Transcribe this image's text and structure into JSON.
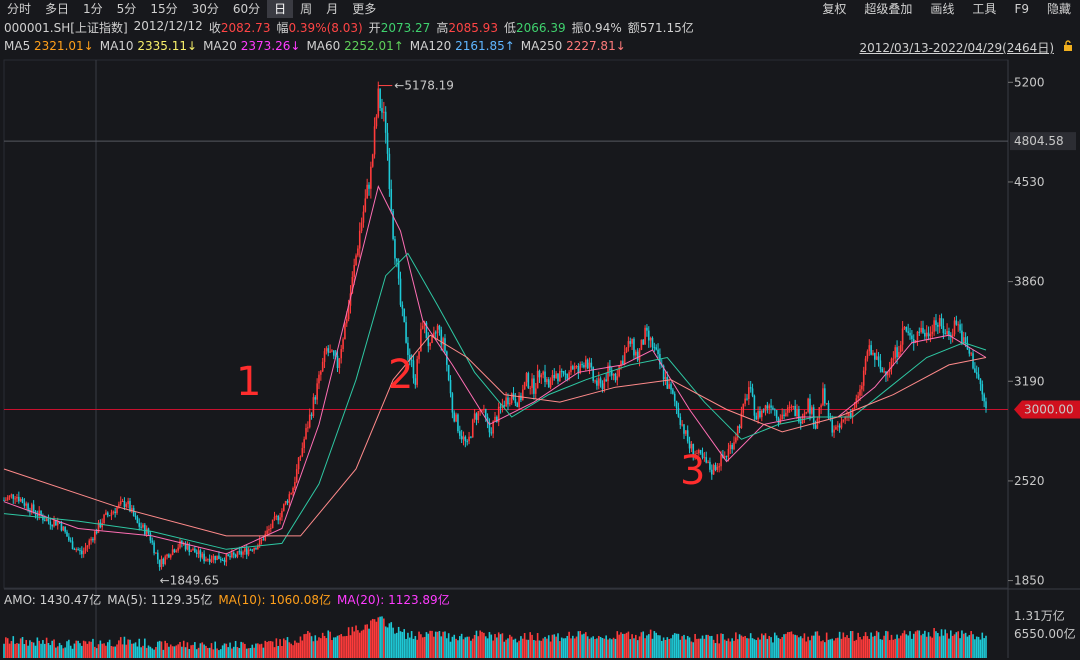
{
  "toolbar": {
    "periods": [
      "分时",
      "多日",
      "1分",
      "5分",
      "15分",
      "30分",
      "60分",
      "日",
      "周",
      "月",
      "更多"
    ],
    "active_period": "日",
    "right_items": [
      "复权",
      "超级叠加",
      "画线",
      "工具",
      "F9",
      "隐藏"
    ]
  },
  "quote": {
    "code": "000001.SH[上证指数]",
    "date": "2012/12/12",
    "close_label": "收",
    "close": "2082.73",
    "change_label": "幅",
    "change": "0.39%(8.03)",
    "open_label": "开",
    "open": "2073.27",
    "high_label": "高",
    "high": "2085.93",
    "low_label": "低",
    "low": "2066.39",
    "amplitude_label": "振",
    "amplitude": "0.94%",
    "amount_label": "额",
    "amount": "571.15亿"
  },
  "ma_legend": [
    {
      "name": "MA5",
      "value": "2321.01↓",
      "color": "#ff9f1a"
    },
    {
      "name": "MA10",
      "value": "2335.11↓",
      "color": "#f7f06a"
    },
    {
      "name": "MA20",
      "value": "2373.26↓",
      "color": "#ff3cff"
    },
    {
      "name": "MA60",
      "value": "2252.01↑",
      "color": "#5fd05a"
    },
    {
      "name": "MA120",
      "value": "2161.85↑",
      "color": "#5fb6ff"
    },
    {
      "name": "MA250",
      "value": "2227.81↓",
      "color": "#ff7a7a"
    }
  ],
  "date_range": "2012/03/13-2022/04/29(2464日)",
  "volume_legend": {
    "amo": "AMO: 1430.47亿",
    "ma5": "MA(5): 1129.35亿",
    "ma10": "MA(10): 1060.08亿",
    "ma20": "MA(20): 1123.89亿"
  },
  "colors": {
    "up": "#ff3b3b",
    "down": "#1ec9d6",
    "bg": "#17181c",
    "grid": "#2a2c33",
    "crosshair": "#c8102e"
  },
  "chart_data": {
    "type": "line",
    "title": "",
    "y_axis_ticks": [
      5200,
      4530,
      3860,
      3190,
      2520,
      1850
    ],
    "ylim": [
      1800,
      5350
    ],
    "marked_levels": {
      "hline_value": "4804.58",
      "crosshair_price": "3000.00"
    },
    "extremes": {
      "high_label": "5178.19",
      "low_label": "1849.65"
    },
    "annotations": [
      "1",
      "2",
      "3"
    ],
    "volume_axis_ticks": [
      "1.31万亿",
      "6550.00亿"
    ],
    "series": [
      {
        "key": "close",
        "points": [
          [
            0,
            2390
          ],
          [
            3,
            2430
          ],
          [
            6,
            2360
          ],
          [
            9,
            2300
          ],
          [
            12,
            2250
          ],
          [
            15,
            2240
          ],
          [
            18,
            2100
          ],
          [
            21,
            2030
          ],
          [
            24,
            2150
          ],
          [
            27,
            2270
          ],
          [
            30,
            2330
          ],
          [
            33,
            2380
          ],
          [
            36,
            2230
          ],
          [
            39,
            2170
          ],
          [
            42,
            1960
          ],
          [
            45,
            2050
          ],
          [
            48,
            2100
          ],
          [
            51,
            2050
          ],
          [
            54,
            2000
          ],
          [
            57,
            2010
          ],
          [
            60,
            2000
          ],
          [
            63,
            2020
          ],
          [
            66,
            2060
          ],
          [
            69,
            2100
          ],
          [
            72,
            2210
          ],
          [
            75,
            2320
          ],
          [
            78,
            2480
          ],
          [
            81,
            2800
          ],
          [
            84,
            3100
          ],
          [
            87,
            3400
          ],
          [
            90,
            3300
          ],
          [
            93,
            3700
          ],
          [
            96,
            4200
          ],
          [
            99,
            4600
          ],
          [
            101,
            5100
          ],
          [
            103,
            4900
          ],
          [
            105,
            4200
          ],
          [
            107,
            3700
          ],
          [
            109,
            3400
          ],
          [
            111,
            3200
          ],
          [
            113,
            3600
          ],
          [
            115,
            3400
          ],
          [
            117,
            3550
          ],
          [
            119,
            3400
          ],
          [
            121,
            3000
          ],
          [
            123,
            2850
          ],
          [
            125,
            2750
          ],
          [
            127,
            2950
          ],
          [
            129,
            3000
          ],
          [
            131,
            2850
          ],
          [
            133,
            2950
          ],
          [
            135,
            3050
          ],
          [
            137,
            3100
          ],
          [
            139,
            3050
          ],
          [
            141,
            3200
          ],
          [
            143,
            3150
          ],
          [
            145,
            3280
          ],
          [
            147,
            3150
          ],
          [
            149,
            3250
          ],
          [
            151,
            3200
          ],
          [
            153,
            3300
          ],
          [
            155,
            3250
          ],
          [
            157,
            3350
          ],
          [
            159,
            3200
          ],
          [
            161,
            3150
          ],
          [
            163,
            3250
          ],
          [
            165,
            3230
          ],
          [
            167,
            3350
          ],
          [
            169,
            3450
          ],
          [
            171,
            3350
          ],
          [
            173,
            3500
          ],
          [
            175,
            3430
          ],
          [
            177,
            3300
          ],
          [
            179,
            3170
          ],
          [
            181,
            3050
          ],
          [
            183,
            2900
          ],
          [
            185,
            2750
          ],
          [
            187,
            2700
          ],
          [
            189,
            2650
          ],
          [
            191,
            2590
          ],
          [
            193,
            2650
          ],
          [
            195,
            2700
          ],
          [
            197,
            2800
          ],
          [
            199,
            2950
          ],
          [
            201,
            3150
          ],
          [
            203,
            2950
          ],
          [
            205,
            3000
          ],
          [
            207,
            3050
          ],
          [
            209,
            2950
          ],
          [
            211,
            2980
          ],
          [
            213,
            3000
          ],
          [
            215,
            2950
          ],
          [
            217,
            3050
          ],
          [
            219,
            2900
          ],
          [
            221,
            3100
          ],
          [
            223,
            2900
          ],
          [
            225,
            2850
          ],
          [
            227,
            2950
          ],
          [
            229,
            3000
          ],
          [
            231,
            3100
          ],
          [
            233,
            3400
          ],
          [
            235,
            3350
          ],
          [
            237,
            3250
          ],
          [
            239,
            3300
          ],
          [
            241,
            3400
          ],
          [
            243,
            3550
          ],
          [
            245,
            3450
          ],
          [
            247,
            3550
          ],
          [
            249,
            3500
          ],
          [
            251,
            3600
          ],
          [
            253,
            3550
          ],
          [
            255,
            3500
          ],
          [
            257,
            3600
          ],
          [
            259,
            3450
          ],
          [
            261,
            3350
          ],
          [
            263,
            3200
          ],
          [
            265,
            3000
          ]
        ]
      },
      {
        "key": "ma20",
        "points": [
          [
            0,
            2380
          ],
          [
            20,
            2200
          ],
          [
            40,
            2150
          ],
          [
            60,
            2030
          ],
          [
            75,
            2200
          ],
          [
            85,
            2900
          ],
          [
            95,
            3900
          ],
          [
            101,
            4500
          ],
          [
            107,
            4200
          ],
          [
            113,
            3600
          ],
          [
            121,
            3300
          ],
          [
            131,
            2900
          ],
          [
            143,
            3050
          ],
          [
            155,
            3250
          ],
          [
            167,
            3300
          ],
          [
            175,
            3400
          ],
          [
            185,
            3000
          ],
          [
            195,
            2650
          ],
          [
            205,
            2900
          ],
          [
            215,
            2950
          ],
          [
            225,
            2950
          ],
          [
            235,
            3150
          ],
          [
            245,
            3450
          ],
          [
            255,
            3500
          ],
          [
            265,
            3350
          ]
        ]
      },
      {
        "key": "ma60",
        "points": [
          [
            0,
            2300
          ],
          [
            20,
            2250
          ],
          [
            40,
            2180
          ],
          [
            60,
            2060
          ],
          [
            75,
            2100
          ],
          [
            85,
            2500
          ],
          [
            95,
            3200
          ],
          [
            103,
            3900
          ],
          [
            109,
            4050
          ],
          [
            117,
            3700
          ],
          [
            127,
            3250
          ],
          [
            137,
            2950
          ],
          [
            147,
            3100
          ],
          [
            157,
            3200
          ],
          [
            169,
            3300
          ],
          [
            179,
            3350
          ],
          [
            189,
            3050
          ],
          [
            199,
            2800
          ],
          [
            209,
            2900
          ],
          [
            219,
            2950
          ],
          [
            229,
            2950
          ],
          [
            239,
            3150
          ],
          [
            249,
            3350
          ],
          [
            259,
            3450
          ],
          [
            265,
            3400
          ]
        ]
      },
      {
        "key": "ma250",
        "points": [
          [
            0,
            2600
          ],
          [
            30,
            2350
          ],
          [
            60,
            2150
          ],
          [
            80,
            2150
          ],
          [
            95,
            2600
          ],
          [
            105,
            3200
          ],
          [
            115,
            3500
          ],
          [
            125,
            3350
          ],
          [
            135,
            3100
          ],
          [
            150,
            3050
          ],
          [
            165,
            3150
          ],
          [
            180,
            3200
          ],
          [
            195,
            3000
          ],
          [
            210,
            2850
          ],
          [
            225,
            2950
          ],
          [
            240,
            3100
          ],
          [
            255,
            3300
          ],
          [
            265,
            3350
          ]
        ]
      }
    ]
  }
}
